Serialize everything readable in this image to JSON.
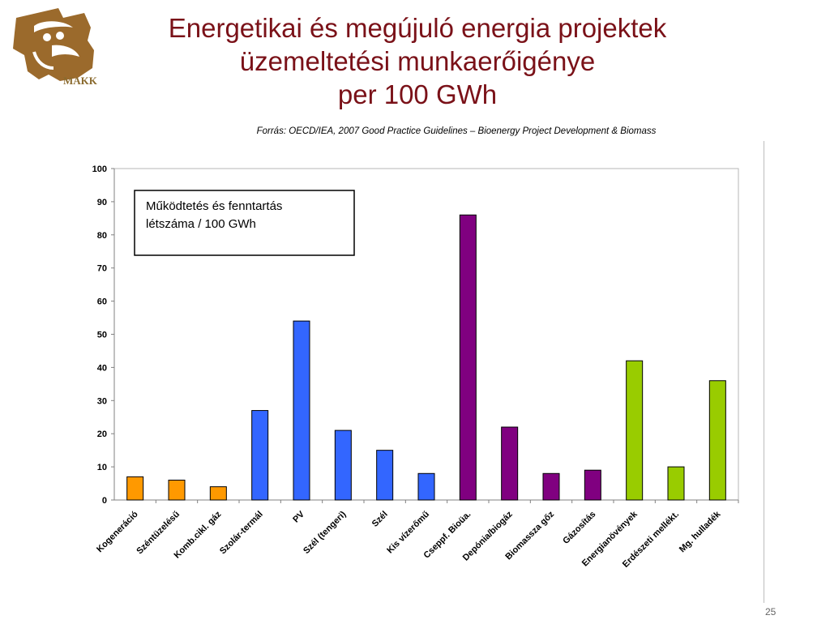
{
  "slide": {
    "title_lines": [
      "Energetikai és megújuló energia projektek",
      "üzemeltetési munkaerőigénye",
      "per 100 GWh"
    ],
    "source": "Forrás: OECD/IEA, 2007 Good Practice Guidelines – Bioenergy Project Development & Biomass",
    "page_number": "25",
    "logo_text": "MAKK",
    "logo_icon": "makk-logo-icon"
  },
  "chart_data": {
    "type": "bar",
    "title": "",
    "xlabel": "",
    "ylabel": "",
    "ylim": [
      0,
      100
    ],
    "y_ticks": [
      0,
      10,
      20,
      30,
      40,
      50,
      60,
      70,
      80,
      90,
      100
    ],
    "grid": false,
    "legend_box": {
      "lines": [
        "Működtetés és fenntartás",
        "létszáma / 100 GWh"
      ],
      "placement": "top-left"
    },
    "categories": [
      "Kogeneráció",
      "Széntüzelésű",
      "Komb.cikl. gáz",
      "Szolár-termál",
      "PV",
      "Szél (tengeri)",
      "Szél",
      "Kis vízerőmű",
      "Cseppf. Bioüa.",
      "Depónia/biogáz",
      "Biomassza gőz",
      "Gázosítás",
      "Energianövények",
      "Erdészeti mellékt.",
      "Mg. hulladék"
    ],
    "values": [
      7,
      6,
      4,
      27,
      54,
      21,
      15,
      8,
      86,
      22,
      8,
      9,
      42,
      10,
      36
    ],
    "colors": [
      "#ff9900",
      "#ff9900",
      "#ff9900",
      "#3366ff",
      "#3366ff",
      "#3366ff",
      "#3366ff",
      "#3366ff",
      "#800080",
      "#800080",
      "#800080",
      "#800080",
      "#99cc00",
      "#99cc00",
      "#99cc00"
    ]
  }
}
